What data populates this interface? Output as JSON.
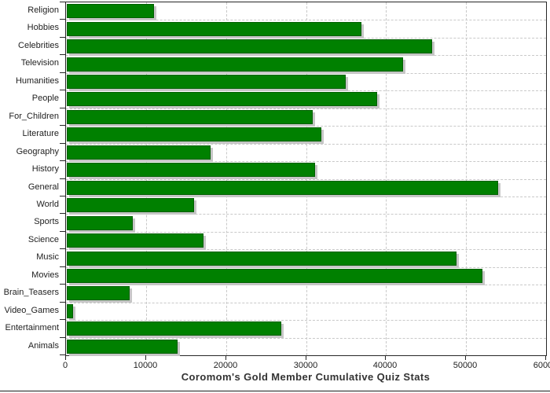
{
  "chart_data": {
    "type": "bar",
    "orientation": "horizontal",
    "title": "Coromom's Gold Member Cumulative Quiz Stats",
    "xlabel": "",
    "ylabel": "",
    "categories": [
      "Religion",
      "Hobbies",
      "Celebrities",
      "Television",
      "Humanities",
      "People",
      "For_Children",
      "Literature",
      "Geography",
      "History",
      "General",
      "World",
      "Sports",
      "Science",
      "Music",
      "Movies",
      "Brain_Teasers",
      "Video_Games",
      "Entertainment",
      "Animals"
    ],
    "values": [
      10900,
      36800,
      45700,
      42000,
      34900,
      38800,
      30700,
      31800,
      18000,
      31000,
      53900,
      15900,
      8200,
      17100,
      48700,
      51900,
      7900,
      800,
      26800,
      13800
    ],
    "xlim": [
      0,
      60000
    ],
    "x_ticks": [
      0,
      10000,
      20000,
      30000,
      40000,
      50000,
      60000
    ],
    "x_tick_labels": [
      "0",
      "10000",
      "20000",
      "30000",
      "40000",
      "50000",
      "60000"
    ],
    "grid": "dashed, both axes",
    "legend": "none",
    "colors": {
      "bar": "#008000",
      "bar_shadow": "#c6c6c6",
      "gridline": "#c9c9c9",
      "axis": "#262626",
      "tick_text": "#222222",
      "title_text": "#333333",
      "background": "#ffffff"
    }
  }
}
